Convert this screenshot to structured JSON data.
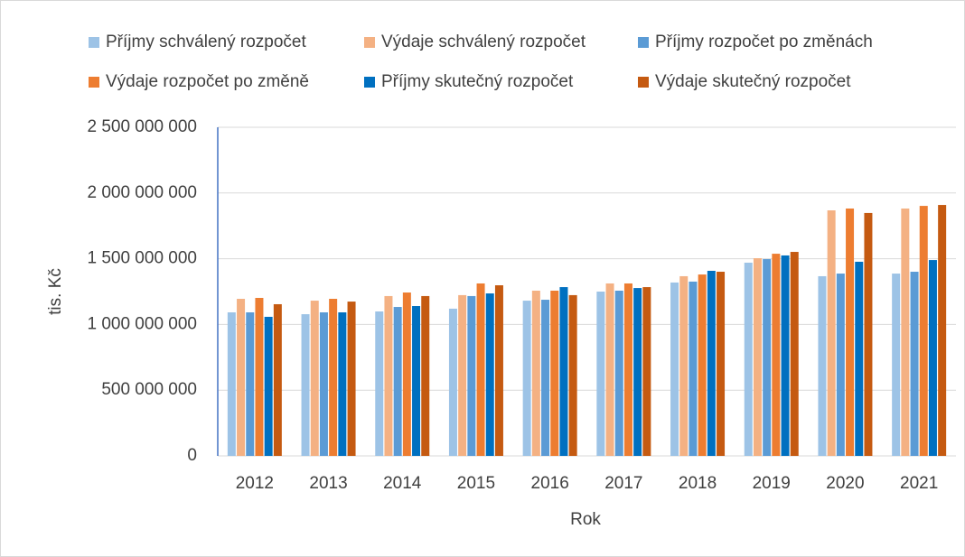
{
  "chart_data": {
    "type": "bar",
    "categories": [
      "2012",
      "2013",
      "2014",
      "2015",
      "2016",
      "2017",
      "2018",
      "2019",
      "2020",
      "2021"
    ],
    "series": [
      {
        "name": "Příjmy schválený rozpočet",
        "color": "#9dc3e6",
        "values": [
          1092000000,
          1078000000,
          1099000000,
          1120000000,
          1181000000,
          1250000000,
          1319000000,
          1470000000,
          1367000000,
          1387000000
        ]
      },
      {
        "name": "Výdaje schválený rozpočet",
        "color": "#f4b183",
        "values": [
          1195000000,
          1181000000,
          1216000000,
          1223000000,
          1257000000,
          1312000000,
          1367000000,
          1504000000,
          1868000000,
          1882000000
        ]
      },
      {
        "name": "Příjmy rozpočet po změnách",
        "color": "#5b9bd5",
        "values": [
          1092000000,
          1092000000,
          1133000000,
          1216000000,
          1188000000,
          1257000000,
          1326000000,
          1497000000,
          1387000000,
          1401000000
        ]
      },
      {
        "name": "Výdaje rozpočet po změně",
        "color": "#ed7d31",
        "values": [
          1202000000,
          1195000000,
          1243000000,
          1312000000,
          1257000000,
          1312000000,
          1380000000,
          1538000000,
          1882000000,
          1902000000
        ]
      },
      {
        "name": "Příjmy skutečný rozpočet",
        "color": "#0070c0",
        "values": [
          1058000000,
          1092000000,
          1140000000,
          1236000000,
          1284000000,
          1277000000,
          1408000000,
          1525000000,
          1477000000,
          1490000000
        ]
      },
      {
        "name": "Výdaje skutečný rozpočet",
        "color": "#c55a11",
        "values": [
          1154000000,
          1174000000,
          1216000000,
          1298000000,
          1223000000,
          1284000000,
          1401000000,
          1552000000,
          1848000000,
          1909000000
        ]
      }
    ],
    "x_label": "Rok",
    "y_label": "tis. Kč",
    "ylim": [
      0,
      2500000000
    ],
    "yticks": [
      0,
      {
        "value": 500000000,
        "label": "500 000 000"
      },
      {
        "value": 1000000000,
        "label": "1 000 000 000"
      },
      {
        "value": 1500000000,
        "label": "1 500 000 000"
      },
      {
        "value": 2000000000,
        "label": "2 000 000 000"
      },
      {
        "value": 2500000000,
        "label": "2 500 000 000"
      }
    ],
    "grid": true
  }
}
